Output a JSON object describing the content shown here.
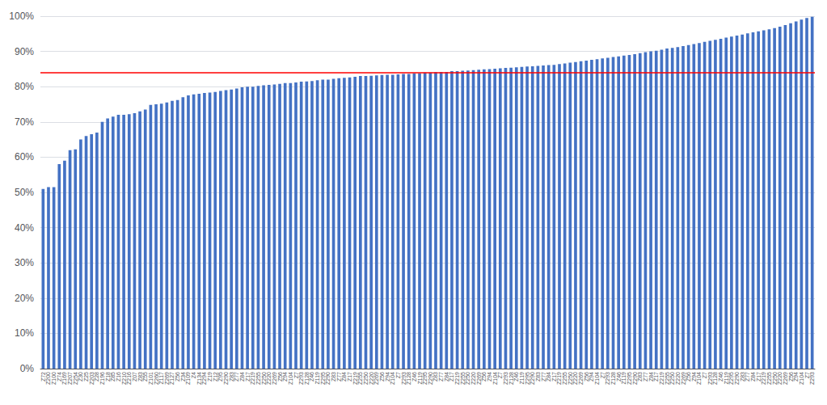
{
  "chart_data": {
    "type": "bar",
    "categories": [
      "Z72",
      "Z200",
      "Z100",
      "Z74",
      "Z169",
      "Z207",
      "Z254",
      "Z30",
      "Z25",
      "Z203",
      "Z28",
      "Z196",
      "Z18",
      "Z85",
      "Z16",
      "Z210",
      "Z216",
      "Z07",
      "Z83",
      "Z55",
      "Z101",
      "Z260",
      "Z117",
      "Z269",
      "Z127",
      "Z56",
      "Z34",
      "Z109",
      "Z4",
      "Z134",
      "Z294",
      "Z19",
      "Z12",
      "Z95",
      "Z290",
      "Z83",
      "Z77",
      "Z84",
      "Z17",
      "Z219",
      "Z255",
      "Z250",
      "Z220",
      "Z269",
      "Z56",
      "Z94",
      "Z104",
      "Z7",
      "Z293",
      "Z128",
      "Z46",
      "Z119",
      "Z295",
      "Z290",
      "Z83",
      "Z77",
      "Z84",
      "Z17",
      "Z219",
      "Z255",
      "Z250",
      "Z220",
      "Z269",
      "Z56",
      "Z94",
      "Z104",
      "Z7",
      "Z293",
      "Z128",
      "Z46",
      "Z119",
      "Z295",
      "Z290",
      "Z83",
      "Z77",
      "Z84",
      "Z17",
      "Z219",
      "Z255",
      "Z250",
      "Z220",
      "Z269",
      "Z56",
      "Z94",
      "Z104",
      "Z7",
      "Z293",
      "Z128",
      "Z46",
      "Z119",
      "Z295",
      "Z290",
      "Z83",
      "Z77",
      "Z84",
      "Z17",
      "Z219",
      "Z255",
      "Z250",
      "Z220",
      "Z269",
      "Z56",
      "Z94",
      "Z104",
      "Z7",
      "Z293",
      "Z128",
      "Z46",
      "Z119",
      "Z295",
      "Z290",
      "Z83",
      "Z77",
      "Z84",
      "Z17",
      "Z219",
      "Z255",
      "Z250",
      "Z220",
      "Z269",
      "Z56",
      "Z94",
      "Z104",
      "Z7",
      "Z293",
      "Z128",
      "Z46",
      "Z119",
      "Z295",
      "Z290",
      "Z83",
      "Z77",
      "Z84",
      "Z17",
      "Z219",
      "Z255",
      "Z250",
      "Z220",
      "Z269",
      "Z56",
      "Z94",
      "Z104",
      "Z7",
      "Z293"
    ],
    "values": [
      0.51,
      0.515,
      0.515,
      0.58,
      0.59,
      0.62,
      0.622,
      0.65,
      0.66,
      0.665,
      0.67,
      0.7,
      0.71,
      0.715,
      0.72,
      0.72,
      0.722,
      0.725,
      0.73,
      0.735,
      0.748,
      0.75,
      0.752,
      0.755,
      0.76,
      0.762,
      0.77,
      0.775,
      0.778,
      0.78,
      0.782,
      0.783,
      0.785,
      0.788,
      0.79,
      0.792,
      0.795,
      0.798,
      0.8,
      0.8,
      0.802,
      0.804,
      0.805,
      0.806,
      0.808,
      0.81,
      0.81,
      0.812,
      0.814,
      0.815,
      0.816,
      0.818,
      0.82,
      0.82,
      0.822,
      0.824,
      0.825,
      0.826,
      0.828,
      0.83,
      0.83,
      0.831,
      0.832,
      0.833,
      0.834,
      0.834,
      0.835,
      0.836,
      0.836,
      0.838,
      0.838,
      0.84,
      0.84,
      0.841,
      0.842,
      0.842,
      0.844,
      0.844,
      0.845,
      0.846,
      0.847,
      0.848,
      0.849,
      0.85,
      0.851,
      0.852,
      0.853,
      0.854,
      0.855,
      0.856,
      0.857,
      0.858,
      0.859,
      0.86,
      0.861,
      0.862,
      0.864,
      0.866,
      0.868,
      0.87,
      0.872,
      0.874,
      0.876,
      0.878,
      0.88,
      0.882,
      0.884,
      0.886,
      0.888,
      0.89,
      0.892,
      0.895,
      0.898,
      0.9,
      0.902,
      0.905,
      0.908,
      0.91,
      0.912,
      0.915,
      0.918,
      0.921,
      0.924,
      0.927,
      0.93,
      0.933,
      0.936,
      0.939,
      0.942,
      0.945,
      0.948,
      0.951,
      0.954,
      0.957,
      0.96,
      0.963,
      0.966,
      0.97,
      0.975,
      0.98,
      0.985,
      0.99,
      0.995,
      0.998
    ],
    "color": "#4472C4",
    "ylim": [
      0,
      1.0
    ],
    "yticks": [
      {
        "value": 0,
        "label": "0%"
      },
      {
        "value": 0.1,
        "label": "10%"
      },
      {
        "value": 0.2,
        "label": "20%"
      },
      {
        "value": 0.3,
        "label": "30%"
      },
      {
        "value": 0.4,
        "label": "40%"
      },
      {
        "value": 0.5,
        "label": "50%"
      },
      {
        "value": 0.6,
        "label": "60%"
      },
      {
        "value": 0.7,
        "label": "70%"
      },
      {
        "value": 0.8,
        "label": "80%"
      },
      {
        "value": 0.9,
        "label": "90%"
      },
      {
        "value": 1.0,
        "label": "100%"
      }
    ],
    "grid": true,
    "reference_line": {
      "value": 0.84,
      "color": "#FF0000"
    }
  }
}
